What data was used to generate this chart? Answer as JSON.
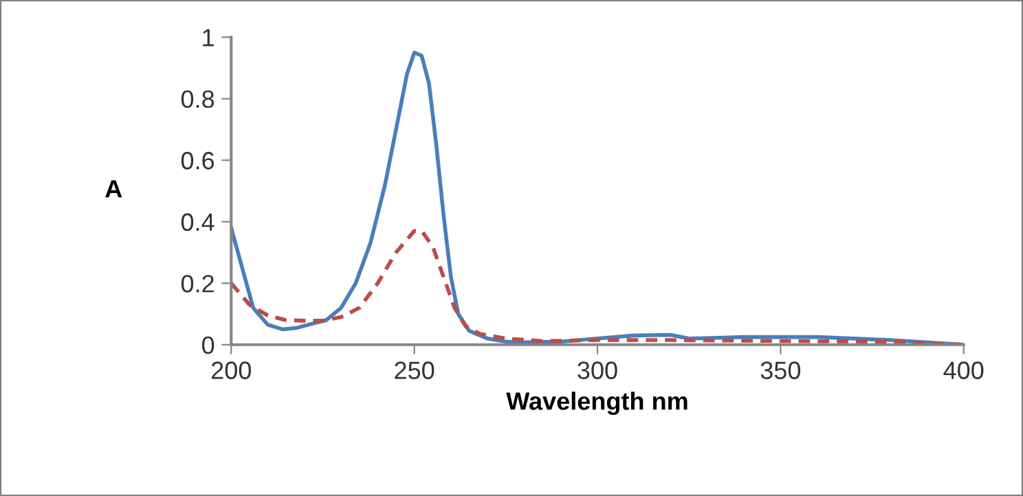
{
  "chart_data": {
    "type": "line",
    "xlabel": "Wavelength nm",
    "ylabel": "A",
    "xlim": [
      200,
      400
    ],
    "xticks": [
      200,
      250,
      300,
      350,
      400
    ],
    "ylim": [
      0,
      1
    ],
    "yticks": [
      0,
      {
        "value": 0.2,
        "label": "0.2"
      },
      {
        "value": 0.4,
        "label": "0.4"
      },
      {
        "value": 0.6,
        "label": "0.6"
      },
      {
        "value": 0.8,
        "label": "0.8"
      },
      1
    ],
    "grid": false,
    "legend": false,
    "marker": "none",
    "series": [
      {
        "color": "#4a7ebb",
        "line_style": "solid",
        "x": [
          200,
          203,
          206,
          210,
          214,
          218,
          222,
          226,
          230,
          234,
          238,
          242,
          245,
          248,
          250,
          252,
          254,
          256,
          258,
          260,
          262,
          265,
          270,
          275,
          280,
          290,
          300,
          310,
          320,
          325,
          340,
          360,
          380,
          400
        ],
        "values": [
          0.38,
          0.25,
          0.12,
          0.065,
          0.05,
          0.055,
          0.068,
          0.08,
          0.12,
          0.2,
          0.33,
          0.52,
          0.7,
          0.88,
          0.95,
          0.94,
          0.85,
          0.65,
          0.42,
          0.22,
          0.1,
          0.045,
          0.02,
          0.01,
          0.008,
          0.01,
          0.02,
          0.03,
          0.032,
          0.02,
          0.025,
          0.025,
          0.015,
          0.0
        ]
      },
      {
        "color": "#be4b48",
        "line_style": "dashed",
        "x": [
          200,
          205,
          210,
          215,
          220,
          225,
          230,
          235,
          240,
          245,
          250,
          252,
          255,
          258,
          261,
          264,
          268,
          275,
          285,
          300,
          320,
          350,
          380,
          400
        ],
        "values": [
          0.2,
          0.13,
          0.095,
          0.08,
          0.078,
          0.078,
          0.09,
          0.12,
          0.2,
          0.3,
          0.37,
          0.37,
          0.32,
          0.22,
          0.12,
          0.06,
          0.035,
          0.02,
          0.012,
          0.015,
          0.015,
          0.012,
          0.01,
          0.0
        ]
      }
    ]
  }
}
